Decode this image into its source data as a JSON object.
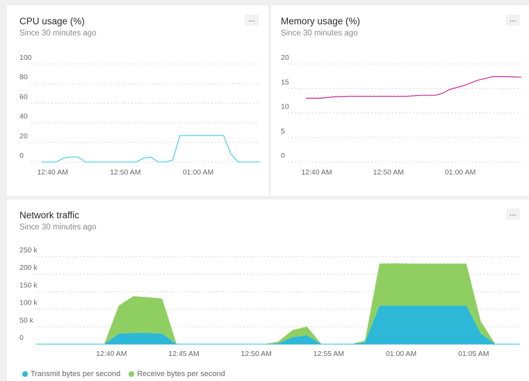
{
  "panels": {
    "cpu": {
      "title": "CPU usage (%)",
      "subtitle": "Since 30 minutes ago",
      "more_label": "..."
    },
    "memory": {
      "title": "Memory usage (%)",
      "subtitle": "Since 30 minutes ago",
      "more_label": "..."
    },
    "network": {
      "title": "Network traffic",
      "subtitle": "Since 30 minutes ago",
      "more_label": "..."
    }
  },
  "chart_data": [
    {
      "type": "line",
      "title": "CPU usage (%)",
      "x_tick_labels": [
        "12:40 AM",
        "12:50 AM",
        "01:00 AM"
      ],
      "x_ticks": [
        1.5,
        11.5,
        21.5
      ],
      "ylim": [
        0,
        100
      ],
      "y_ticks": [
        0,
        20,
        40,
        60,
        80,
        100
      ],
      "xlim": [
        0,
        30
      ],
      "grid": true,
      "color": "#4fd0e6",
      "series": [
        {
          "x": [
            0,
            1,
            2,
            3,
            4,
            5,
            6,
            7,
            8,
            9,
            10,
            11,
            12,
            13,
            14,
            15,
            16,
            17,
            18,
            19,
            20,
            21,
            22,
            23,
            24,
            25,
            26,
            27,
            28,
            29,
            30
          ],
          "values": [
            0,
            0,
            0,
            4,
            5,
            5,
            0,
            0,
            0,
            0,
            0,
            0,
            0,
            0,
            4,
            5,
            0,
            0,
            2,
            27,
            27,
            27,
            27,
            27,
            27,
            27,
            8,
            0,
            0,
            0,
            0
          ]
        }
      ]
    },
    {
      "type": "line",
      "title": "Memory usage (%)",
      "x_tick_labels": [
        "12:40 AM",
        "12:50 AM",
        "01:00 AM"
      ],
      "x_ticks": [
        1.5,
        11.5,
        21.5
      ],
      "ylim": [
        0,
        20
      ],
      "y_ticks": [
        0,
        5,
        10,
        15,
        20
      ],
      "xlim": [
        0,
        30
      ],
      "grid": true,
      "color": "#c6309a",
      "series": [
        {
          "x": [
            0,
            2,
            4,
            6,
            8,
            10,
            12,
            14,
            16,
            18,
            19,
            20,
            22,
            24,
            26,
            28,
            30
          ],
          "values": [
            13.0,
            13.0,
            13.3,
            13.4,
            13.4,
            13.4,
            13.4,
            13.4,
            13.6,
            13.6,
            14.0,
            14.8,
            15.6,
            16.7,
            17.4,
            17.4,
            17.3
          ]
        }
      ]
    },
    {
      "type": "area",
      "title": "Network traffic",
      "x_tick_labels": [
        "12:40 AM",
        "12:45 AM",
        "12:50 AM",
        "12:55 AM",
        "01:00 AM",
        "01:05 AM"
      ],
      "x_ticks": [
        1.5,
        6.5,
        11.5,
        16.5,
        21.5,
        26.5
      ],
      "ylim": [
        0,
        250000
      ],
      "y_ticks": [
        0,
        50000,
        100000,
        150000,
        200000,
        250000
      ],
      "y_tick_labels": [
        "0",
        "50 k",
        "100 k",
        "150 k",
        "200 k",
        "250 k"
      ],
      "xlim": [
        -3.7,
        29.7
      ],
      "stacked": true,
      "grid": true,
      "legend_position": "bottom-left",
      "x": [
        0,
        1,
        2,
        3,
        4,
        5,
        6,
        7,
        8,
        9,
        10,
        11,
        12,
        13,
        14,
        15,
        16,
        17,
        18,
        19,
        20,
        21,
        22,
        23,
        24,
        25,
        26,
        27,
        28
      ],
      "series": [
        {
          "name": "Transmit bytes per second",
          "color": "#2db8d8",
          "values": [
            0,
            0,
            30000,
            32000,
            32000,
            30000,
            0,
            0,
            0,
            0,
            0,
            0,
            0,
            2000,
            20000,
            25000,
            0,
            0,
            0,
            5000,
            110000,
            110000,
            110000,
            110000,
            110000,
            110000,
            110000,
            30000,
            0
          ]
        },
        {
          "name": "Receive bytes per second",
          "color": "#8fcf62",
          "values": [
            0,
            0,
            80000,
            105000,
            102000,
            100000,
            0,
            0,
            0,
            0,
            0,
            0,
            0,
            5000,
            20000,
            25000,
            0,
            0,
            0,
            5000,
            120000,
            121000,
            120000,
            120000,
            120000,
            120000,
            120000,
            35000,
            0
          ]
        }
      ]
    }
  ]
}
